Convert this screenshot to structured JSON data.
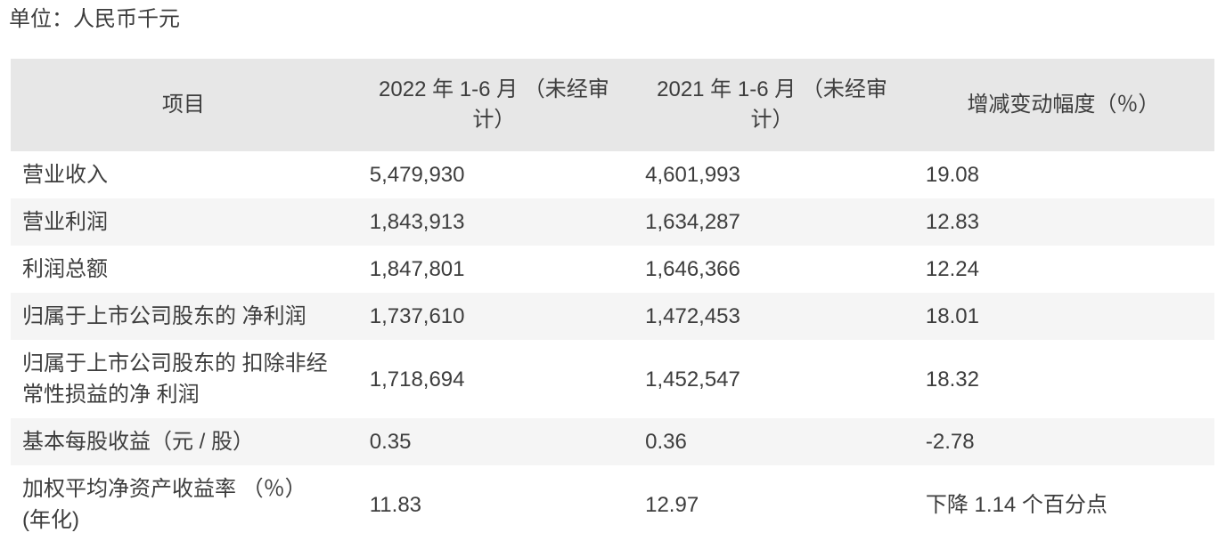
{
  "unit_label": "单位：人民币千元",
  "table": {
    "columns": [
      "项目",
      "2022 年 1-6 月 （未经审\n计）",
      "2021 年 1-6 月 （未经审\n计）",
      "增减变动幅度（％）"
    ],
    "rows": [
      {
        "item": "营业收入",
        "v2022": "5,479,930",
        "v2021": "4,601,993",
        "change": "19.08"
      },
      {
        "item": "营业利润",
        "v2022": "1,843,913",
        "v2021": "1,634,287",
        "change": "12.83"
      },
      {
        "item": "利润总额",
        "v2022": "1,847,801",
        "v2021": "1,646,366",
        "change": "12.24"
      },
      {
        "item": "归属于上市公司股东的 净利润",
        "v2022": "1,737,610",
        "v2021": "1,472,453",
        "change": "18.01"
      },
      {
        "item": "归属于上市公司股东的 扣除非经\n常性损益的净 利润",
        "v2022": "1,718,694",
        "v2021": "1,452,547",
        "change": "18.32"
      },
      {
        "item": "基本每股收益（元 / 股）",
        "v2022": "0.35",
        "v2021": "0.36",
        "change": "-2.78"
      },
      {
        "item": "加权平均净资产收益率 （％）\n(年化)",
        "v2022": "11.83",
        "v2021": "12.97",
        "change": "下降 1.14 个百分点"
      }
    ]
  },
  "colors": {
    "header_bg": "#e7e7e7",
    "stripe_bg": "#f5f5f5",
    "text": "#3d3d3d"
  }
}
